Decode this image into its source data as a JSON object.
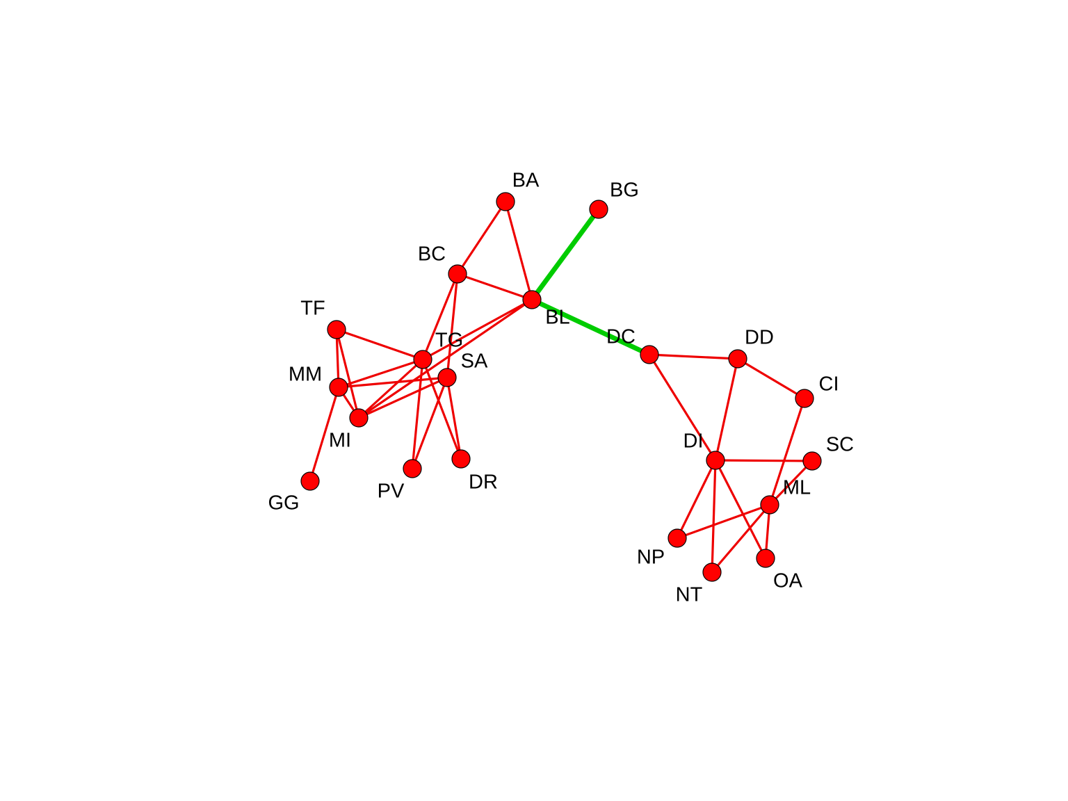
{
  "graph": {
    "node_fill": "#ff0000",
    "node_stroke": "#000000",
    "edge_color_default": "#ee0000",
    "edge_color_highlight": "#00cc00",
    "nodes": [
      {
        "id": "BA"
      },
      {
        "id": "BG"
      },
      {
        "id": "BC"
      },
      {
        "id": "BL"
      },
      {
        "id": "TF"
      },
      {
        "id": "TG"
      },
      {
        "id": "SA"
      },
      {
        "id": "MM"
      },
      {
        "id": "MI"
      },
      {
        "id": "GG"
      },
      {
        "id": "PV"
      },
      {
        "id": "DR"
      },
      {
        "id": "DC"
      },
      {
        "id": "DD"
      },
      {
        "id": "CI"
      },
      {
        "id": "DI"
      },
      {
        "id": "SC"
      },
      {
        "id": "ML"
      },
      {
        "id": "NP"
      },
      {
        "id": "NT"
      },
      {
        "id": "OA"
      }
    ],
    "edges": [
      {
        "source": "BA",
        "target": "BC",
        "highlight": false
      },
      {
        "source": "BA",
        "target": "BL",
        "highlight": false
      },
      {
        "source": "BC",
        "target": "BL",
        "highlight": false
      },
      {
        "source": "BG",
        "target": "BL",
        "highlight": true
      },
      {
        "source": "BL",
        "target": "DC",
        "highlight": true
      },
      {
        "source": "BC",
        "target": "TG",
        "highlight": false
      },
      {
        "source": "BC",
        "target": "SA",
        "highlight": false
      },
      {
        "source": "BL",
        "target": "TG",
        "highlight": false
      },
      {
        "source": "BL",
        "target": "MI",
        "highlight": false
      },
      {
        "source": "TF",
        "target": "TG",
        "highlight": false
      },
      {
        "source": "TF",
        "target": "MM",
        "highlight": false
      },
      {
        "source": "TF",
        "target": "MI",
        "highlight": false
      },
      {
        "source": "MM",
        "target": "TG",
        "highlight": false
      },
      {
        "source": "MM",
        "target": "SA",
        "highlight": false
      },
      {
        "source": "MM",
        "target": "MI",
        "highlight": false
      },
      {
        "source": "MM",
        "target": "GG",
        "highlight": false
      },
      {
        "source": "MI",
        "target": "TG",
        "highlight": false
      },
      {
        "source": "MI",
        "target": "SA",
        "highlight": false
      },
      {
        "source": "TG",
        "target": "PV",
        "highlight": false
      },
      {
        "source": "TG",
        "target": "DR",
        "highlight": false
      },
      {
        "source": "SA",
        "target": "PV",
        "highlight": false
      },
      {
        "source": "SA",
        "target": "DR",
        "highlight": false
      },
      {
        "source": "DC",
        "target": "DD",
        "highlight": false
      },
      {
        "source": "DC",
        "target": "DI",
        "highlight": false
      },
      {
        "source": "DD",
        "target": "CI",
        "highlight": false
      },
      {
        "source": "DD",
        "target": "DI",
        "highlight": false
      },
      {
        "source": "CI",
        "target": "ML",
        "highlight": false
      },
      {
        "source": "DI",
        "target": "SC",
        "highlight": false
      },
      {
        "source": "DI",
        "target": "NP",
        "highlight": false
      },
      {
        "source": "DI",
        "target": "NT",
        "highlight": false
      },
      {
        "source": "DI",
        "target": "OA",
        "highlight": false
      },
      {
        "source": "SC",
        "target": "ML",
        "highlight": false
      },
      {
        "source": "ML",
        "target": "NP",
        "highlight": false
      },
      {
        "source": "ML",
        "target": "NT",
        "highlight": false
      },
      {
        "source": "ML",
        "target": "OA",
        "highlight": false
      }
    ]
  }
}
